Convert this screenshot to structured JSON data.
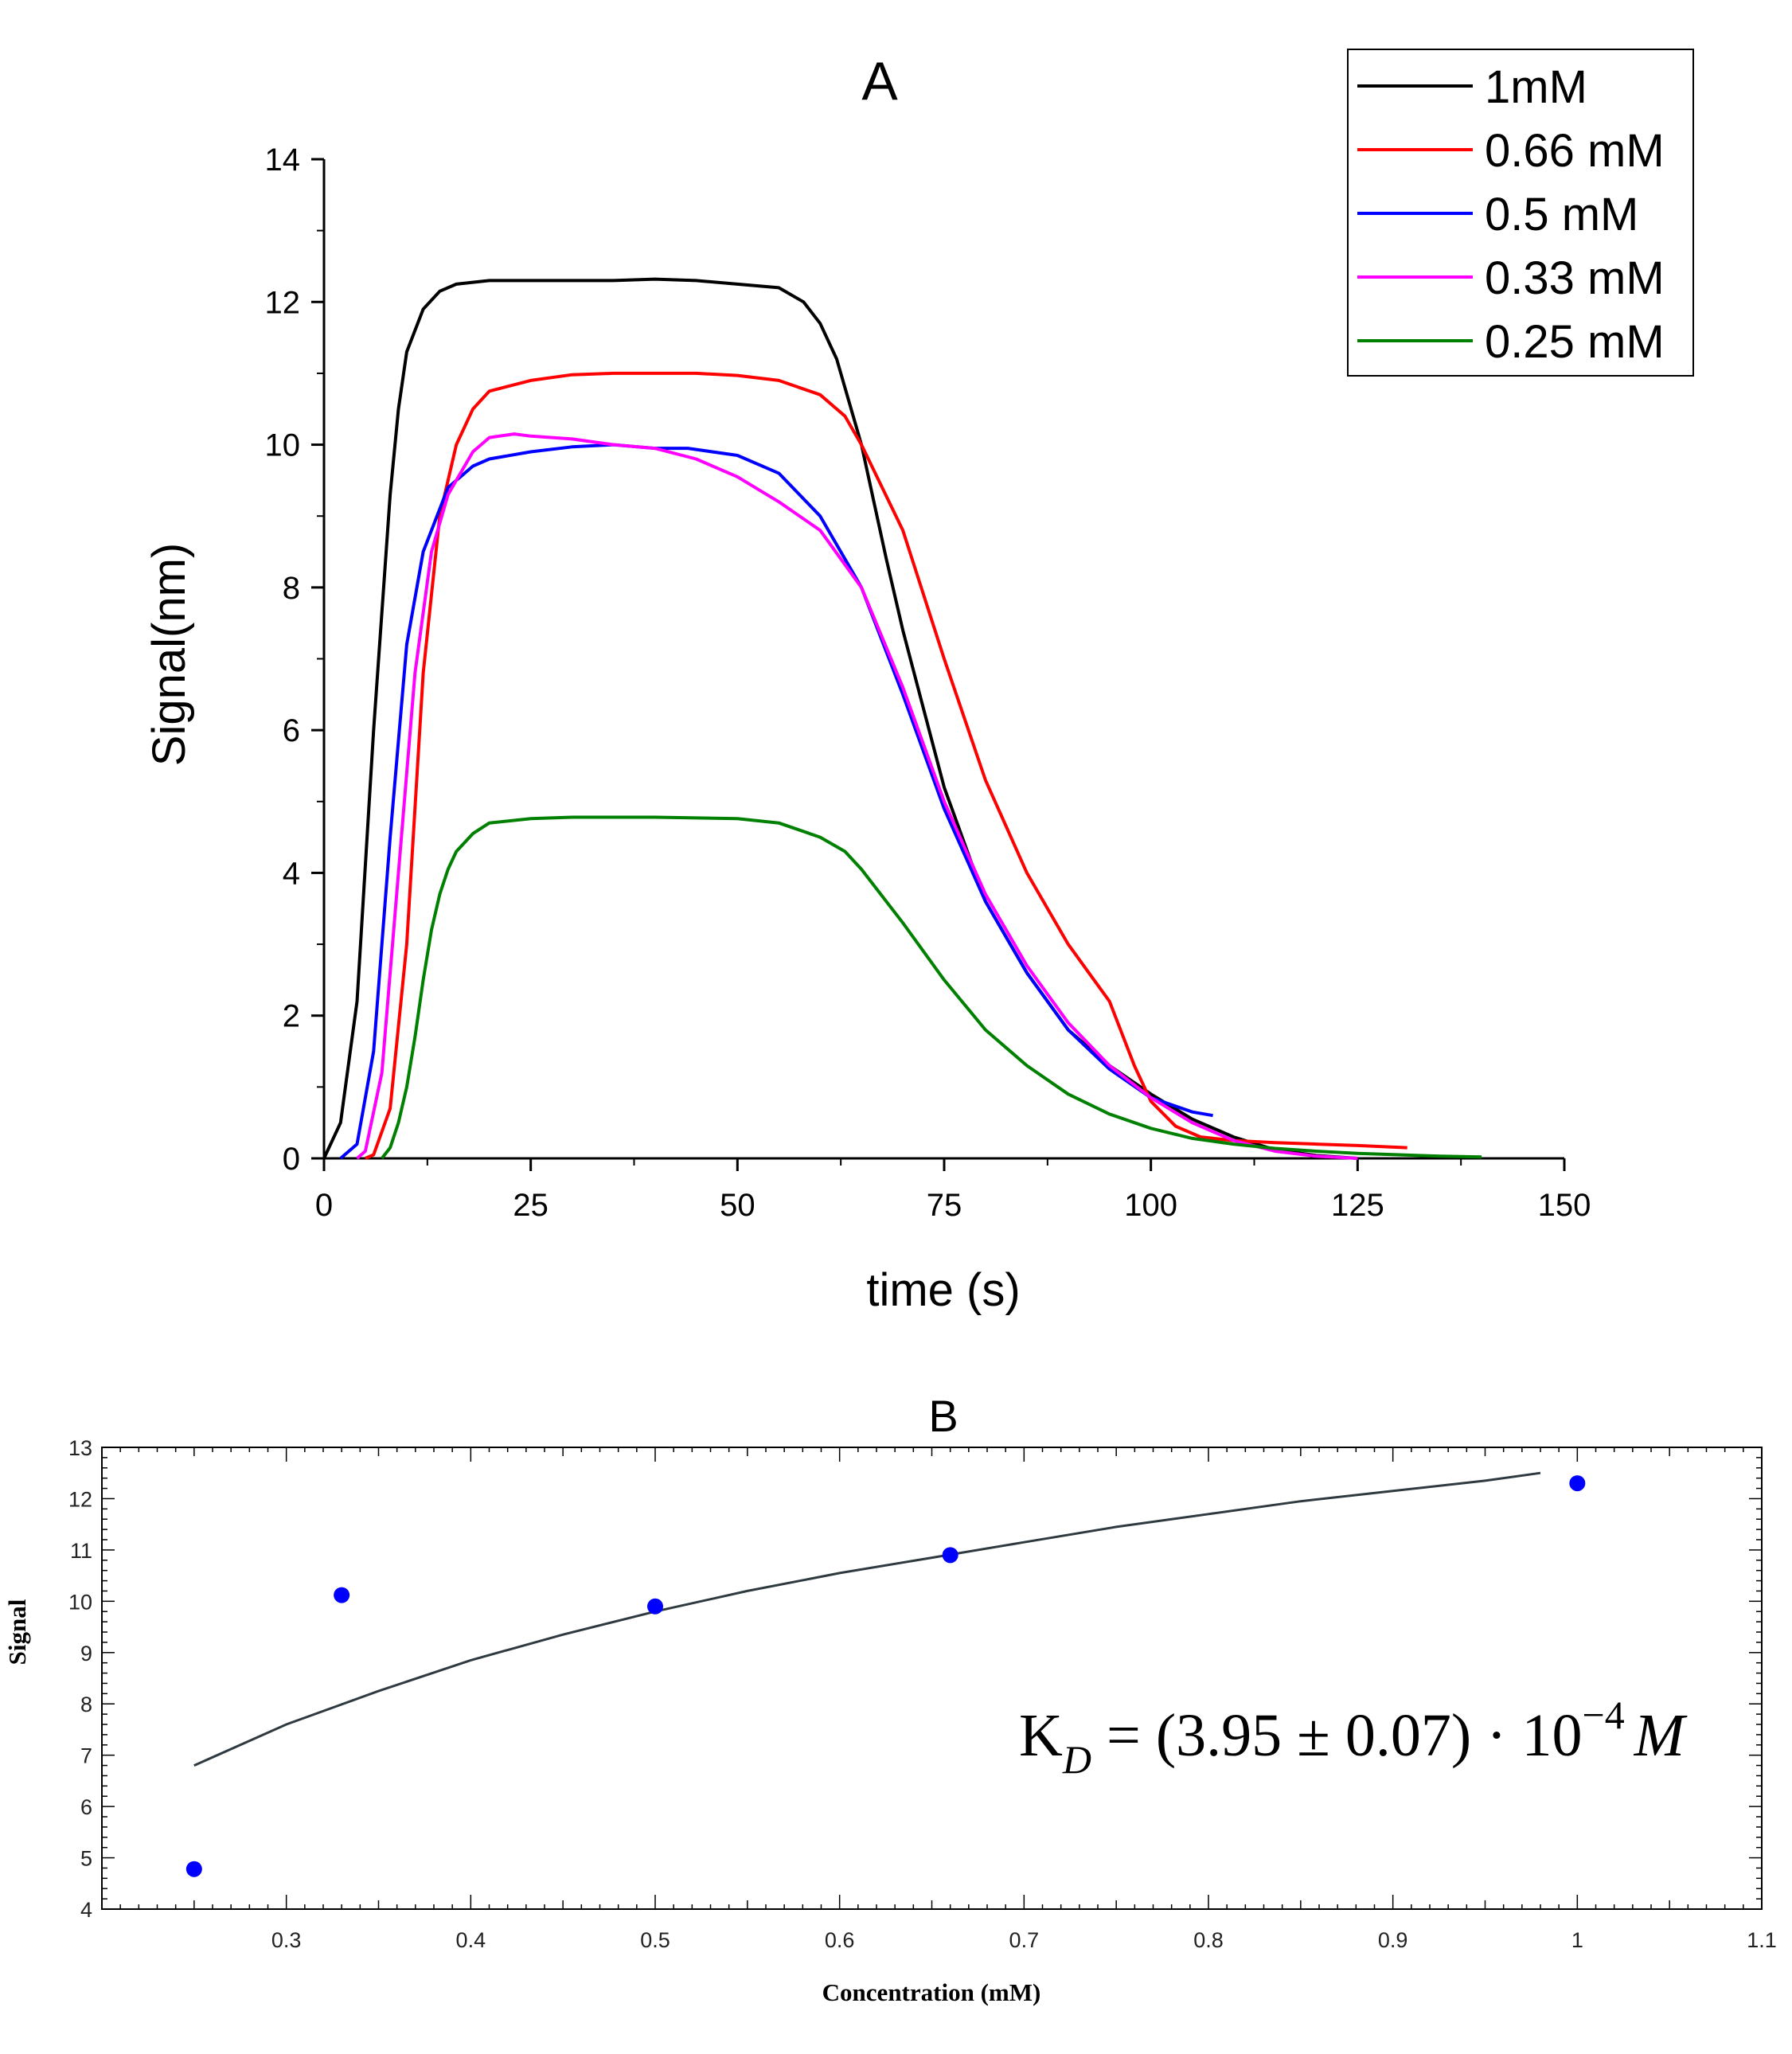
{
  "chart_data": [
    {
      "type": "line",
      "title": "A",
      "xlabel": "time (s)",
      "ylabel": "Signal(nm)",
      "xlim": [
        0,
        150
      ],
      "ylim": [
        0,
        14
      ],
      "xticks": [
        "0",
        "25",
        "50",
        "75",
        "100",
        "125",
        "150"
      ],
      "yticks": [
        "0",
        "2",
        "4",
        "6",
        "8",
        "10",
        "12",
        "14"
      ],
      "legend_position": "top-right",
      "series": [
        {
          "name": "1mM",
          "color": "#000000",
          "x": [
            0,
            2,
            4,
            6,
            8,
            9,
            10,
            12,
            14,
            16,
            20,
            25,
            30,
            35,
            40,
            45,
            50,
            55,
            58,
            60,
            62,
            65,
            68,
            70,
            75,
            80,
            85,
            90,
            95,
            100,
            105,
            110,
            115,
            120,
            125
          ],
          "y": [
            0,
            0.5,
            2.2,
            6.0,
            9.3,
            10.5,
            11.3,
            11.9,
            12.15,
            12.25,
            12.3,
            12.3,
            12.3,
            12.3,
            12.32,
            12.3,
            12.25,
            12.2,
            12.0,
            11.7,
            11.2,
            10.0,
            8.4,
            7.4,
            5.2,
            3.6,
            2.6,
            1.8,
            1.3,
            0.9,
            0.55,
            0.3,
            0.12,
            0.04,
            0.0
          ]
        },
        {
          "name": "0.66 mM",
          "color": "#ff0000",
          "x": [
            5,
            6,
            8,
            10,
            12,
            14,
            16,
            18,
            20,
            25,
            30,
            35,
            40,
            45,
            50,
            55,
            60,
            63,
            65,
            70,
            75,
            80,
            85,
            90,
            95,
            96,
            98,
            100,
            103,
            106,
            110,
            115,
            120,
            125,
            131
          ],
          "y": [
            0,
            0.05,
            0.7,
            3.0,
            6.8,
            9.0,
            10.0,
            10.5,
            10.75,
            10.9,
            10.98,
            11.0,
            11.0,
            11.0,
            10.97,
            10.9,
            10.7,
            10.4,
            10.0,
            8.8,
            7.0,
            5.3,
            4.0,
            3.0,
            2.2,
            1.9,
            1.3,
            0.8,
            0.45,
            0.3,
            0.25,
            0.22,
            0.2,
            0.18,
            0.15
          ]
        },
        {
          "name": "0.5 mM",
          "color": "#0000ff",
          "x": [
            2,
            4,
            6,
            8,
            10,
            12,
            15,
            18,
            20,
            25,
            30,
            35,
            40,
            44,
            50,
            55,
            60,
            65,
            70,
            75,
            80,
            85,
            90,
            95,
            100,
            105,
            107.5
          ],
          "y": [
            0,
            0.2,
            1.5,
            4.5,
            7.2,
            8.5,
            9.4,
            9.7,
            9.8,
            9.9,
            9.97,
            10.0,
            9.95,
            9.95,
            9.85,
            9.6,
            9.0,
            8.0,
            6.5,
            4.9,
            3.6,
            2.6,
            1.8,
            1.25,
            0.85,
            0.65,
            0.6
          ]
        },
        {
          "name": "0.33 mM",
          "color": "#ff00ff",
          "x": [
            4,
            5,
            7,
            9,
            11,
            13,
            15,
            18,
            20,
            23,
            25,
            30,
            35,
            40,
            45,
            50,
            55,
            60,
            65,
            70,
            75,
            80,
            85,
            90,
            95,
            100,
            105,
            110,
            115,
            120,
            125
          ],
          "y": [
            0,
            0.1,
            1.2,
            4.0,
            6.8,
            8.5,
            9.3,
            9.9,
            10.1,
            10.15,
            10.12,
            10.08,
            10.0,
            9.95,
            9.8,
            9.55,
            9.2,
            8.8,
            8.0,
            6.6,
            5.0,
            3.7,
            2.7,
            1.9,
            1.3,
            0.85,
            0.5,
            0.25,
            0.1,
            0.03,
            0.0
          ]
        },
        {
          "name": "0.25 mM",
          "color": "#008000",
          "x": [
            7,
            8,
            9,
            10,
            11,
            12,
            13,
            14,
            15,
            16,
            18,
            20,
            25,
            30,
            40,
            50,
            55,
            60,
            63,
            65,
            70,
            75,
            80,
            85,
            90,
            95,
            100,
            105,
            110,
            115,
            120,
            125,
            130,
            135,
            140
          ],
          "y": [
            0,
            0.15,
            0.5,
            1.0,
            1.7,
            2.5,
            3.2,
            3.7,
            4.05,
            4.3,
            4.55,
            4.7,
            4.76,
            4.78,
            4.78,
            4.76,
            4.7,
            4.5,
            4.3,
            4.05,
            3.3,
            2.5,
            1.8,
            1.3,
            0.9,
            0.62,
            0.42,
            0.28,
            0.2,
            0.14,
            0.1,
            0.07,
            0.05,
            0.03,
            0.02
          ]
        }
      ]
    },
    {
      "type": "scatter",
      "title": "B",
      "xlabel": "Concentration (mM)",
      "ylabel": "Signal",
      "xlim": [
        0.2,
        1.1
      ],
      "ylim": [
        4,
        13
      ],
      "xticks": [
        "0.3",
        "0.4",
        "0.5",
        "0.6",
        "0.7",
        "0.8",
        "0.9",
        "1",
        "1.1"
      ],
      "yticks": [
        "4",
        "5",
        "6",
        "7",
        "8",
        "9",
        "10",
        "11",
        "12",
        "13"
      ],
      "points": {
        "x": [
          0.25,
          0.33,
          0.5,
          0.66,
          1.0
        ],
        "y": [
          4.78,
          10.12,
          9.9,
          10.9,
          12.3
        ],
        "color": "#0000ff"
      },
      "fit": {
        "x": [
          0.25,
          0.3,
          0.35,
          0.4,
          0.45,
          0.5,
          0.55,
          0.6,
          0.65,
          0.7,
          0.75,
          0.8,
          0.85,
          0.9,
          0.95,
          0.98
        ],
        "y": [
          6.8,
          7.6,
          8.25,
          8.85,
          9.35,
          9.8,
          10.2,
          10.55,
          10.85,
          11.15,
          11.45,
          11.7,
          11.95,
          12.15,
          12.35,
          12.5
        ],
        "color": "#2f3a40"
      },
      "annotation": {
        "k": "K",
        "sub": "D",
        "expr": " = (3.95 ± 0.07) · 10",
        "exp": "−4",
        "unit": "M"
      }
    }
  ]
}
